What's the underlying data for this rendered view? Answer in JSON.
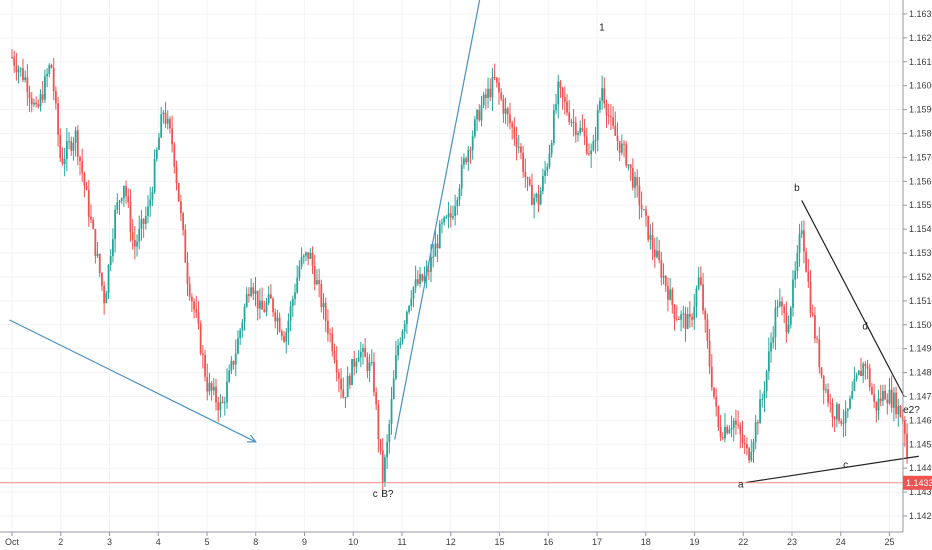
{
  "chart_data": {
    "type": "candlestick",
    "instrument_price_label": "1.14339",
    "colors": {
      "up": "#26a69a",
      "down": "#ef5350",
      "trendline": "#4a90c0",
      "wedge": "#222222",
      "price_line": "#f28b82",
      "price_tag_bg": "#ef5350"
    },
    "ylim": [
      1.1415,
      1.1635
    ],
    "y_ticks": [
      "1.16300",
      "1.16200",
      "1.16100",
      "1.16000",
      "1.15900",
      "1.15800",
      "1.15700",
      "1.15600",
      "1.15500",
      "1.15400",
      "1.15300",
      "1.15200",
      "1.15100",
      "1.15000",
      "1.14900",
      "1.14800",
      "1.14700",
      "1.14600",
      "1.14500",
      "1.14400",
      "1.14300",
      "1.14200"
    ],
    "x_ticks": [
      {
        "label": "Oct",
        "day": 1
      },
      {
        "label": "2",
        "day": 2
      },
      {
        "label": "3",
        "day": 3
      },
      {
        "label": "4",
        "day": 4
      },
      {
        "label": "5",
        "day": 5
      },
      {
        "label": "8",
        "day": 6
      },
      {
        "label": "9",
        "day": 7
      },
      {
        "label": "10",
        "day": 8
      },
      {
        "label": "11",
        "day": 9
      },
      {
        "label": "12",
        "day": 10
      },
      {
        "label": "15",
        "day": 11
      },
      {
        "label": "16",
        "day": 12
      },
      {
        "label": "17",
        "day": 13
      },
      {
        "label": "18",
        "day": 14
      },
      {
        "label": "19",
        "day": 15
      },
      {
        "label": "22",
        "day": 16
      },
      {
        "label": "23",
        "day": 17
      },
      {
        "label": "24",
        "day": 18
      },
      {
        "label": "25",
        "day": 19
      }
    ],
    "price_path": [
      [
        0.0,
        1.1612
      ],
      [
        0.3,
        1.1602
      ],
      [
        0.5,
        1.1588
      ],
      [
        0.8,
        1.161
      ],
      [
        1.0,
        1.1568
      ],
      [
        1.3,
        1.158
      ],
      [
        1.6,
        1.1545
      ],
      [
        1.9,
        1.151
      ],
      [
        2.1,
        1.1545
      ],
      [
        2.3,
        1.156
      ],
      [
        2.5,
        1.1532
      ],
      [
        2.8,
        1.1548
      ],
      [
        3.1,
        1.159
      ],
      [
        3.3,
        1.1575
      ],
      [
        3.6,
        1.152
      ],
      [
        3.8,
        1.15
      ],
      [
        4.0,
        1.1475
      ],
      [
        4.3,
        1.1465
      ],
      [
        4.6,
        1.149
      ],
      [
        4.9,
        1.152
      ],
      [
        5.1,
        1.1505
      ],
      [
        5.3,
        1.151
      ],
      [
        5.6,
        1.1495
      ],
      [
        5.9,
        1.1525
      ],
      [
        6.1,
        1.153
      ],
      [
        6.4,
        1.1505
      ],
      [
        6.6,
        1.149
      ],
      [
        6.8,
        1.147
      ],
      [
        7.1,
        1.149
      ],
      [
        7.4,
        1.148
      ],
      [
        7.6,
        1.1435
      ],
      [
        7.7,
        1.145
      ],
      [
        7.9,
        1.149
      ],
      [
        8.2,
        1.1515
      ],
      [
        8.5,
        1.152
      ],
      [
        8.8,
        1.154
      ],
      [
        9.0,
        1.1545
      ],
      [
        9.3,
        1.157
      ],
      [
        9.6,
        1.159
      ],
      [
        9.9,
        1.1602
      ],
      [
        10.1,
        1.159
      ],
      [
        10.4,
        1.1575
      ],
      [
        10.6,
        1.1555
      ],
      [
        10.8,
        1.1552
      ],
      [
        11.0,
        1.157
      ],
      [
        11.2,
        1.1598
      ],
      [
        11.5,
        1.1585
      ],
      [
        11.7,
        1.158
      ],
      [
        11.9,
        1.157
      ],
      [
        12.1,
        1.16
      ],
      [
        12.3,
        1.1582
      ],
      [
        12.6,
        1.157
      ],
      [
        12.9,
        1.155
      ],
      [
        13.1,
        1.1535
      ],
      [
        13.4,
        1.1518
      ],
      [
        13.6,
        1.1505
      ],
      [
        13.9,
        1.15
      ],
      [
        14.1,
        1.152
      ],
      [
        14.3,
        1.1485
      ],
      [
        14.5,
        1.1455
      ],
      [
        14.8,
        1.146
      ],
      [
        15.1,
        1.1445
      ],
      [
        15.4,
        1.147
      ],
      [
        15.7,
        1.151
      ],
      [
        15.9,
        1.15
      ],
      [
        16.1,
        1.1525
      ],
      [
        16.2,
        1.1542
      ],
      [
        16.4,
        1.1505
      ],
      [
        16.6,
        1.148
      ],
      [
        16.8,
        1.1465
      ],
      [
        17.1,
        1.146
      ],
      [
        17.3,
        1.1475
      ],
      [
        17.5,
        1.1485
      ],
      [
        17.7,
        1.1465
      ],
      [
        17.9,
        1.1472
      ],
      [
        18.1,
        1.1468
      ],
      [
        18.3,
        1.146
      ],
      [
        18.4,
        1.1435
      ]
    ],
    "annotations": [
      {
        "text": "1",
        "day": 12.1,
        "price": 1.1623
      },
      {
        "text": "b",
        "day": 16.1,
        "price": 1.1556
      },
      {
        "text": "d",
        "day": 17.5,
        "price": 1.1498
      },
      {
        "text": "e2?",
        "day": 18.45,
        "price": 1.1463
      },
      {
        "text": "c",
        "day": 17.1,
        "price": 1.144
      },
      {
        "text": "a",
        "day": 14.95,
        "price": 1.1432
      },
      {
        "text": "c",
        "day": 7.45,
        "price": 1.1428
      },
      {
        "text": "B?",
        "day": 7.7,
        "price": 1.1428
      }
    ],
    "trendlines": [
      {
        "kind": "blue-arrow",
        "from": [
          -0.05,
          1.1502
        ],
        "to": [
          5.0,
          1.1451
        ]
      },
      {
        "kind": "blue",
        "from": [
          7.85,
          1.1452
        ],
        "to": [
          10.2,
          1.17
        ]
      },
      {
        "kind": "black",
        "from": [
          15.05,
          1.1434
        ],
        "to": [
          18.6,
          1.1445
        ]
      },
      {
        "kind": "black",
        "from": [
          16.2,
          1.1552
        ],
        "to": [
          18.3,
          1.147
        ]
      }
    ]
  }
}
